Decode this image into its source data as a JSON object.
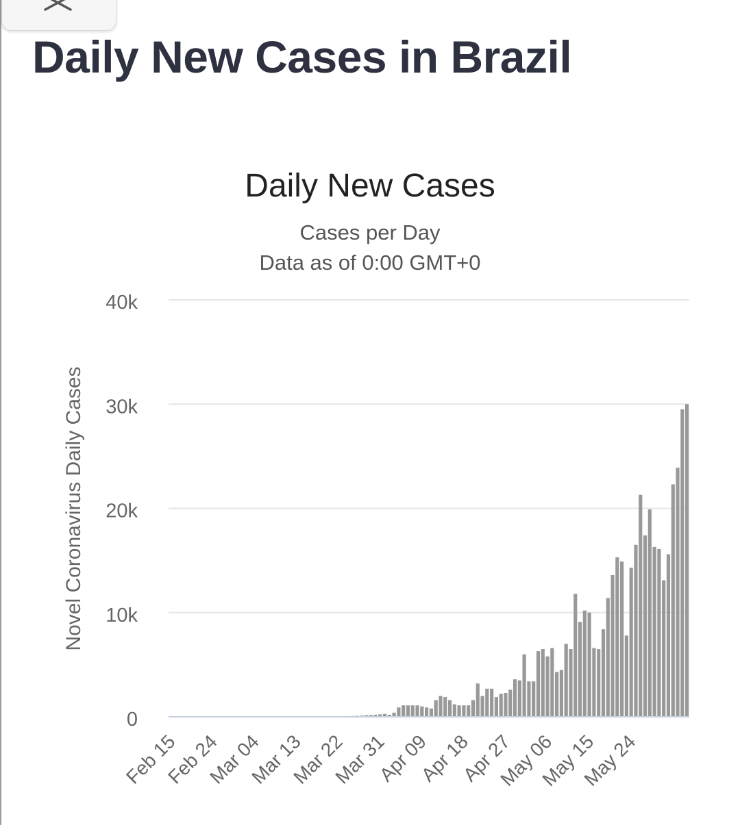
{
  "page": {
    "title": "Daily New Cases in Brazil"
  },
  "icons": {
    "close": "close-icon"
  },
  "chart_data": {
    "type": "bar",
    "title": "Daily New Cases",
    "subtitle": "Cases per Day",
    "subtitle2": "Data as of 0:00 GMT+0",
    "ylabel": "Novel Coronavirus Daily Cases",
    "xlabel": "",
    "ylim": [
      0,
      40000
    ],
    "grid": true,
    "bar_color": "#999999",
    "y_ticks": [
      {
        "value": 0,
        "label": "0"
      },
      {
        "value": 10000,
        "label": "10k"
      },
      {
        "value": 20000,
        "label": "20k"
      },
      {
        "value": 30000,
        "label": "30k"
      },
      {
        "value": 40000,
        "label": "40k"
      }
    ],
    "x_tick_labels": [
      "Feb 15",
      "Feb 24",
      "Mar 04",
      "Mar 13",
      "Mar 22",
      "Mar 31",
      "Apr 09",
      "Apr 18",
      "Apr 27",
      "May 06",
      "May 15",
      "May 24"
    ],
    "x_tick_every": 9,
    "values": [
      0,
      0,
      0,
      0,
      0,
      0,
      0,
      0,
      0,
      0,
      0,
      0,
      0,
      0,
      0,
      0,
      0,
      0,
      0,
      0,
      0,
      0,
      0,
      0,
      0,
      0,
      0,
      0,
      0,
      0,
      0,
      0,
      0,
      0,
      0,
      0,
      20,
      0,
      0,
      80,
      100,
      120,
      150,
      180,
      200,
      240,
      280,
      200,
      400,
      900,
      1100,
      1100,
      1100,
      1100,
      1000,
      900,
      800,
      1600,
      2000,
      1900,
      1600,
      1200,
      1100,
      1100,
      1100,
      1600,
      3200,
      2000,
      2700,
      2700,
      1900,
      2200,
      2300,
      2600,
      3600,
      3500,
      6000,
      3400,
      3400,
      6300,
      6500,
      5800,
      6600,
      4300,
      4500,
      7000,
      6500,
      11800,
      9100,
      10200,
      10000,
      6600,
      6500,
      8400,
      11400,
      13600,
      15300,
      14900,
      7800,
      14300,
      16500,
      21300,
      17400,
      19900,
      16300,
      16100,
      13100,
      15600,
      22300,
      23900,
      29500,
      30000
    ]
  }
}
